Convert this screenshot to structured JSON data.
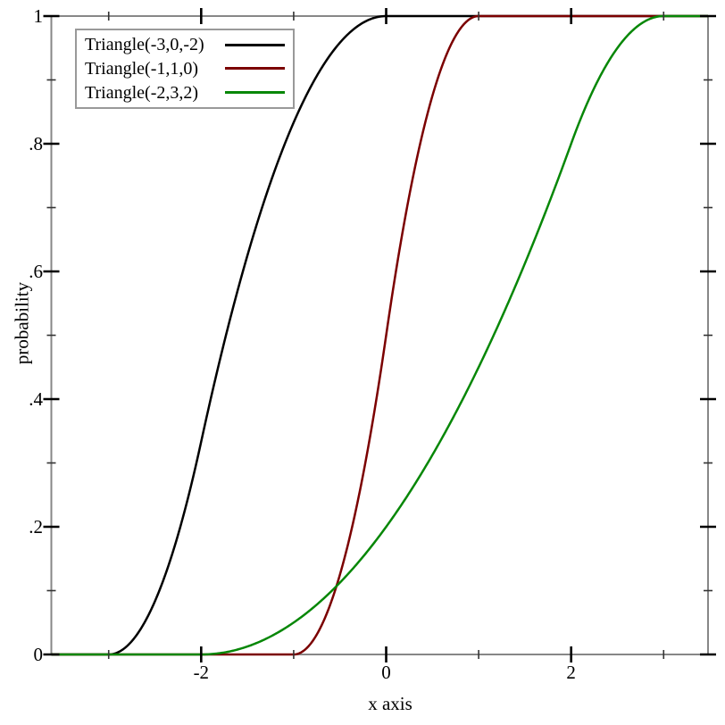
{
  "figure": {
    "background": "#ffffff",
    "frame_color": "#878787",
    "major_tick_color": "#000000",
    "minor_tick_color": "#333333",
    "legend_border_color": "#999999",
    "text_color": "#000000"
  },
  "chart_data": {
    "type": "line",
    "subtype": "cumulative-distribution-function",
    "title": "",
    "xlabel": "x axis",
    "ylabel": "probability",
    "xlim": [
      -3.62,
      3.48
    ],
    "ylim": [
      0,
      1
    ],
    "grid": false,
    "legend_position": "top-left",
    "x_major_ticks": [
      {
        "value": -2,
        "label": "-2"
      },
      {
        "value": 0,
        "label": "0"
      },
      {
        "value": 2,
        "label": "2"
      }
    ],
    "x_minor_ticks": [
      -3,
      -1,
      1,
      3
    ],
    "y_major_ticks": [
      {
        "value": 0,
        "label": "0"
      },
      {
        "value": 0.2,
        "label": ".2"
      },
      {
        "value": 0.4,
        "label": ".4"
      },
      {
        "value": 0.6,
        "label": ".6"
      },
      {
        "value": 0.8,
        "label": ".8"
      },
      {
        "value": 1,
        "label": "1"
      }
    ],
    "y_minor_ticks": [
      0.1,
      0.3,
      0.5,
      0.7,
      0.9
    ],
    "series": [
      {
        "name": "Triangle(-3,0,-2)",
        "color": "#000000",
        "distribution": "triangle",
        "params": {
          "min": -3,
          "max": 0,
          "mode": -2
        },
        "points": [
          [
            -3.62,
            0
          ],
          [
            -3,
            0
          ],
          [
            -2.5,
            0.083
          ],
          [
            -2,
            0.333
          ],
          [
            -1.5,
            0.625
          ],
          [
            -1,
            0.833
          ],
          [
            -0.5,
            0.958
          ],
          [
            0,
            1
          ],
          [
            3.48,
            1
          ]
        ]
      },
      {
        "name": "Triangle(-1,1,0)",
        "color": "#7b0000",
        "distribution": "triangle",
        "params": {
          "min": -1,
          "max": 1,
          "mode": 0
        },
        "points": [
          [
            -3.62,
            0
          ],
          [
            -1,
            0
          ],
          [
            -0.5,
            0.125
          ],
          [
            0,
            0.5
          ],
          [
            0.5,
            0.875
          ],
          [
            1,
            1
          ],
          [
            3.48,
            1
          ]
        ]
      },
      {
        "name": "Triangle(-2,3,2)",
        "color": "#078707",
        "distribution": "triangle",
        "params": {
          "min": -2,
          "max": 3,
          "mode": 2
        },
        "points": [
          [
            -3.62,
            0
          ],
          [
            -2,
            0
          ],
          [
            -1,
            0.05
          ],
          [
            0,
            0.2
          ],
          [
            1,
            0.45
          ],
          [
            2,
            0.8
          ],
          [
            2.5,
            0.95
          ],
          [
            3,
            1
          ],
          [
            3.48,
            1
          ]
        ]
      }
    ]
  }
}
